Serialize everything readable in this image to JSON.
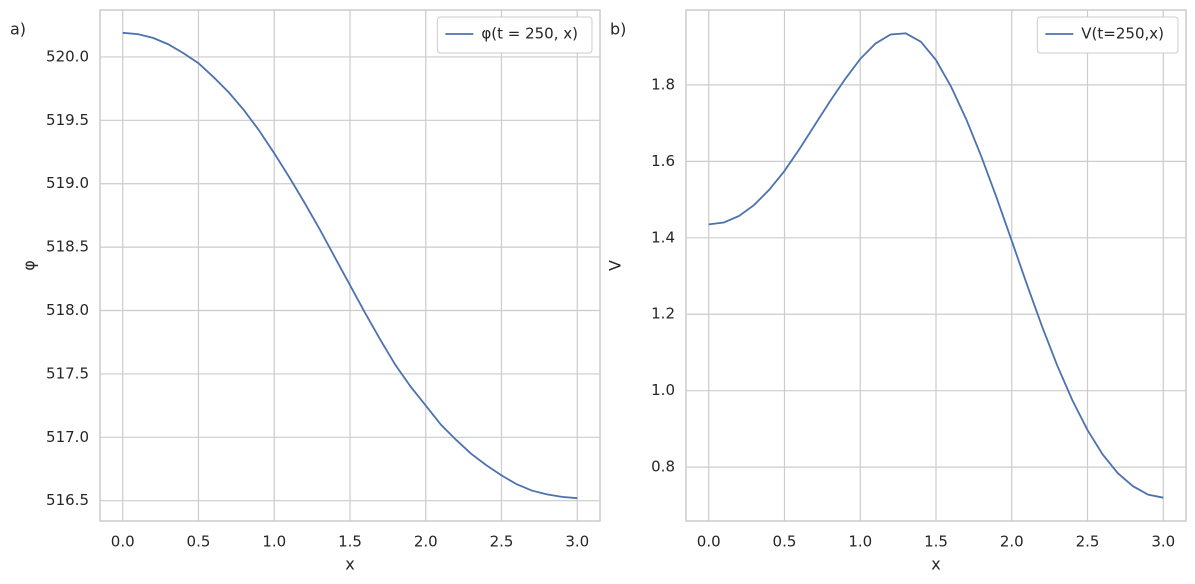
{
  "chart_data": [
    {
      "type": "line",
      "panel_label": "a)",
      "xlabel": "x",
      "ylabel": "φ",
      "x": [
        0,
        0.1,
        0.2,
        0.3,
        0.4,
        0.5,
        0.6,
        0.7,
        0.8,
        0.9,
        1.0,
        1.1,
        1.2,
        1.3,
        1.4,
        1.5,
        1.6,
        1.7,
        1.8,
        1.9,
        2.0,
        2.1,
        2.2,
        2.3,
        2.4,
        2.5,
        2.6,
        2.7,
        2.8,
        2.9,
        3.0
      ],
      "series": [
        {
          "name": "φ(t = 250, x)",
          "color": "#4c72b0",
          "values": [
            520.19,
            520.18,
            520.15,
            520.1,
            520.03,
            519.95,
            519.84,
            519.72,
            519.58,
            519.42,
            519.24,
            519.05,
            518.85,
            518.64,
            518.42,
            518.2,
            517.98,
            517.77,
            517.57,
            517.4,
            517.25,
            517.1,
            516.98,
            516.87,
            516.78,
            516.7,
            516.63,
            516.58,
            516.55,
            516.53,
            516.52
          ]
        }
      ],
      "xlim": [
        -0.15,
        3.15
      ],
      "ylim": [
        516.34,
        520.37
      ],
      "xticks": [
        {
          "value": 0,
          "label": "0.0"
        },
        0.5,
        {
          "value": 1,
          "label": "1.0"
        },
        1.5,
        {
          "value": 2,
          "label": "2.0"
        },
        2.5,
        {
          "value": 3,
          "label": "3.0"
        }
      ],
      "yticks": [
        516.5,
        {
          "value": 517,
          "label": "517.0"
        },
        517.5,
        {
          "value": 518,
          "label": "518.0"
        },
        518.5,
        {
          "value": 519,
          "label": "519.0"
        },
        519.5,
        {
          "value": 520,
          "label": "520.0"
        }
      ],
      "grid": true,
      "legend": "upper right"
    },
    {
      "type": "line",
      "panel_label": "b)",
      "xlabel": "x",
      "ylabel": "V",
      "x": [
        0,
        0.1,
        0.2,
        0.3,
        0.4,
        0.5,
        0.6,
        0.7,
        0.8,
        0.9,
        1.0,
        1.1,
        1.2,
        1.3,
        1.4,
        1.5,
        1.6,
        1.7,
        1.8,
        1.9,
        2.0,
        2.1,
        2.2,
        2.3,
        2.4,
        2.5,
        2.6,
        2.7,
        2.8,
        2.9,
        3.0
      ],
      "series": [
        {
          "name": "V(t=250,x)",
          "color": "#4c72b0",
          "values": [
            1.435,
            1.44,
            1.457,
            1.486,
            1.526,
            1.575,
            1.633,
            1.695,
            1.757,
            1.815,
            1.868,
            1.908,
            1.932,
            1.935,
            1.913,
            1.865,
            1.795,
            1.71,
            1.612,
            1.505,
            1.392,
            1.278,
            1.168,
            1.066,
            0.975,
            0.897,
            0.833,
            0.784,
            0.75,
            0.728,
            0.72
          ]
        }
      ],
      "xlim": [
        -0.15,
        3.15
      ],
      "ylim": [
        0.659,
        1.996
      ],
      "xticks": [
        {
          "value": 0,
          "label": "0.0"
        },
        0.5,
        {
          "value": 1,
          "label": "1.0"
        },
        1.5,
        {
          "value": 2,
          "label": "2.0"
        },
        2.5,
        {
          "value": 3,
          "label": "3.0"
        }
      ],
      "yticks": [
        0.8,
        {
          "value": 1,
          "label": "1.0"
        },
        1.2,
        1.4,
        1.6,
        1.8
      ],
      "grid": true,
      "legend": "upper right"
    }
  ]
}
